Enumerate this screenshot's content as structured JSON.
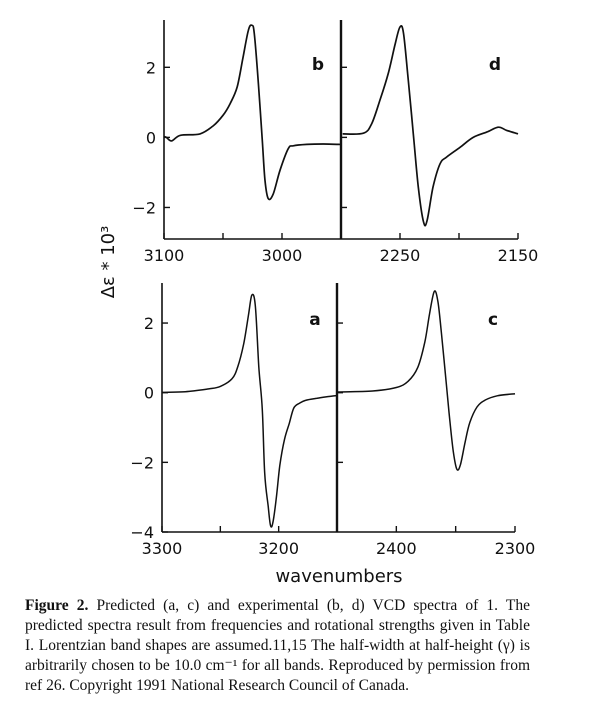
{
  "chart_data": [
    {
      "id": "b",
      "type": "line",
      "label": "b",
      "xlim": [
        3100,
        2950
      ],
      "ylim": [
        -2.9,
        3.35
      ],
      "xticks": [
        3100,
        3050,
        3000,
        2950
      ],
      "xtick_labels": [
        "3100",
        "3000"
      ],
      "xtick_label_values": [
        3100,
        3000
      ],
      "yticks": [
        2,
        0,
        -2
      ],
      "ytick_labels": [
        "2",
        "0",
        "−2"
      ],
      "x": [
        3100,
        3098,
        3093.5,
        3086,
        3069.5,
        3058,
        3050,
        3044,
        3038,
        3033,
        3028.5,
        3025.5,
        3023.5,
        3020,
        3016.7,
        3014.4,
        3011.6,
        3007.4,
        3001.7,
        2994.7,
        2990.4,
        2979,
        2965,
        2952,
        2950
      ],
      "y": [
        0.02,
        0.0,
        -0.1,
        0.06,
        0.1,
        0.34,
        0.63,
        0.96,
        1.44,
        2.29,
        3.06,
        3.2,
        2.96,
        1.53,
        -0.09,
        -1.23,
        -1.75,
        -1.61,
        -0.94,
        -0.32,
        -0.24,
        -0.2,
        -0.19,
        -0.2,
        -0.2
      ]
    },
    {
      "id": "d",
      "type": "line",
      "label": "d",
      "xlim": [
        2300,
        2150
      ],
      "ylim": [
        -2.9,
        3.35
      ],
      "xticks": [
        2250,
        2200,
        2150
      ],
      "xtick_labels": [
        "2250",
        "2150"
      ],
      "xtick_label_values": [
        2250,
        2150
      ],
      "yticks": [
        2,
        0,
        -2
      ],
      "ytick_labels": [],
      "x": [
        2298.6,
        2281,
        2274,
        2267,
        2260,
        2254,
        2250,
        2247,
        2243,
        2238.7,
        2234.5,
        2230,
        2227,
        2222,
        2216,
        2210.4,
        2199,
        2188,
        2176.5,
        2166.7,
        2159.6,
        2150
      ],
      "y": [
        0.1,
        0.12,
        0.39,
        1.06,
        1.82,
        2.68,
        3.15,
        2.97,
        1.63,
        0.1,
        -1.42,
        -2.42,
        -2.37,
        -1.42,
        -0.75,
        -0.56,
        -0.28,
        0.0,
        0.15,
        0.29,
        0.2,
        0.1
      ]
    },
    {
      "id": "a",
      "type": "line",
      "label": "a",
      "xlim": [
        3300,
        3150
      ],
      "ylim": [
        -4,
        3.15
      ],
      "xticks": [
        3300,
        3250,
        3200,
        3150
      ],
      "xtick_labels": [
        "3300",
        "3200"
      ],
      "xtick_label_values": [
        3300,
        3200
      ],
      "yticks": [
        2,
        0,
        -2,
        -4
      ],
      "ytick_labels": [
        "2",
        "0",
        "−2",
        "−4"
      ],
      "x": [
        3300,
        3280,
        3260,
        3250,
        3240,
        3235,
        3230,
        3226,
        3223,
        3220,
        3217,
        3214,
        3212,
        3209,
        3207,
        3205,
        3202,
        3199,
        3195,
        3191,
        3187,
        3182,
        3177,
        3167,
        3157,
        3150
      ],
      "y": [
        0.01,
        0.03,
        0.11,
        0.18,
        0.4,
        0.75,
        1.4,
        2.2,
        2.8,
        2.5,
        0.74,
        -0.49,
        -2.31,
        -3.26,
        -3.81,
        -3.74,
        -3.02,
        -2.09,
        -1.34,
        -0.89,
        -0.44,
        -0.3,
        -0.22,
        -0.16,
        -0.11,
        -0.08
      ]
    },
    {
      "id": "c",
      "type": "line",
      "label": "c",
      "xlim": [
        2450,
        2300
      ],
      "ylim": [
        -4,
        3.15
      ],
      "xticks": [
        2400,
        2350,
        2300
      ],
      "xtick_labels": [
        "2400",
        "2300"
      ],
      "xtick_label_values": [
        2400,
        2300
      ],
      "yticks": [
        2,
        0,
        -2
      ],
      "ytick_labels": [],
      "x": [
        2450,
        2420,
        2400,
        2390,
        2382,
        2376,
        2372,
        2368,
        2365,
        2362,
        2358,
        2355,
        2352,
        2349,
        2346,
        2342,
        2338,
        2332,
        2325,
        2315,
        2300
      ],
      "y": [
        0.02,
        0.05,
        0.15,
        0.33,
        0.72,
        1.45,
        2.27,
        2.91,
        2.62,
        1.72,
        0.29,
        -0.76,
        -1.69,
        -2.2,
        -2.07,
        -1.41,
        -0.85,
        -0.41,
        -0.21,
        -0.09,
        -0.03
      ]
    }
  ],
  "axes": {
    "ylabel": "Δε * 10³",
    "xlabel": "wavenumbers"
  },
  "caption": {
    "label": "Figure 2.",
    "text": "Predicted (a, c) and experimental (b, d) VCD spectra of 1. The predicted spectra result from frequencies and rotational strengths given in Table I. Lorentzian band shapes are assumed.11,15 The half-width at half-height (γ) is arbitrarily chosen to be 10.0 cm⁻¹ for all bands. Reproduced by permission from ref 26. Copyright 1991 National Research Council of Canada."
  }
}
